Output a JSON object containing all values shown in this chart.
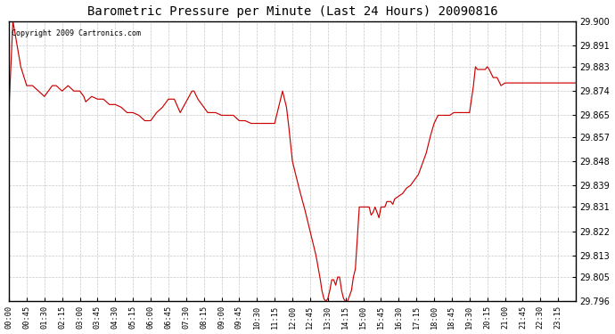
{
  "title": "Barometric Pressure per Minute (Last 24 Hours) 20090816",
  "copyright": "Copyright 2009 Cartronics.com",
  "line_color": "#cc0000",
  "bg_color": "#ffffff",
  "plot_bg_color": "#ffffff",
  "grid_color": "#c8c8c8",
  "ylim": [
    29.796,
    29.9
  ],
  "yticks": [
    29.796,
    29.805,
    29.813,
    29.822,
    29.831,
    29.839,
    29.848,
    29.857,
    29.865,
    29.874,
    29.883,
    29.891,
    29.9
  ],
  "xtick_labels": [
    "00:00",
    "00:45",
    "01:30",
    "02:15",
    "03:00",
    "03:45",
    "04:30",
    "05:15",
    "06:00",
    "06:45",
    "07:30",
    "08:15",
    "09:00",
    "09:45",
    "10:30",
    "11:15",
    "12:00",
    "12:45",
    "13:30",
    "14:15",
    "15:00",
    "15:45",
    "16:30",
    "17:15",
    "18:00",
    "18:45",
    "19:30",
    "20:15",
    "21:00",
    "21:45",
    "22:30",
    "23:15"
  ],
  "keypoints_minutes": [
    [
      0,
      29.867
    ],
    [
      10,
      29.9
    ],
    [
      30,
      29.883
    ],
    [
      45,
      29.876
    ],
    [
      60,
      29.876
    ],
    [
      75,
      29.874
    ],
    [
      90,
      29.872
    ],
    [
      100,
      29.874
    ],
    [
      110,
      29.876
    ],
    [
      120,
      29.876
    ],
    [
      135,
      29.874
    ],
    [
      150,
      29.876
    ],
    [
      165,
      29.874
    ],
    [
      180,
      29.874
    ],
    [
      190,
      29.872
    ],
    [
      195,
      29.87
    ],
    [
      210,
      29.872
    ],
    [
      225,
      29.871
    ],
    [
      240,
      29.871
    ],
    [
      255,
      29.869
    ],
    [
      270,
      29.869
    ],
    [
      285,
      29.868
    ],
    [
      300,
      29.866
    ],
    [
      315,
      29.866
    ],
    [
      330,
      29.865
    ],
    [
      345,
      29.863
    ],
    [
      360,
      29.863
    ],
    [
      375,
      29.866
    ],
    [
      390,
      29.868
    ],
    [
      405,
      29.871
    ],
    [
      420,
      29.871
    ],
    [
      435,
      29.866
    ],
    [
      450,
      29.87
    ],
    [
      465,
      29.874
    ],
    [
      470,
      29.874
    ],
    [
      480,
      29.871
    ],
    [
      495,
      29.868
    ],
    [
      505,
      29.866
    ],
    [
      510,
      29.866
    ],
    [
      525,
      29.866
    ],
    [
      540,
      29.865
    ],
    [
      555,
      29.865
    ],
    [
      570,
      29.865
    ],
    [
      585,
      29.863
    ],
    [
      600,
      29.863
    ],
    [
      615,
      29.862
    ],
    [
      630,
      29.862
    ],
    [
      645,
      29.862
    ],
    [
      660,
      29.862
    ],
    [
      675,
      29.862
    ],
    [
      690,
      29.871
    ],
    [
      695,
      29.874
    ],
    [
      700,
      29.871
    ],
    [
      705,
      29.868
    ],
    [
      710,
      29.862
    ],
    [
      720,
      29.848
    ],
    [
      735,
      29.839
    ],
    [
      750,
      29.831
    ],
    [
      765,
      29.822
    ],
    [
      780,
      29.813
    ],
    [
      790,
      29.805
    ],
    [
      795,
      29.8
    ],
    [
      800,
      29.797
    ],
    [
      805,
      29.796
    ],
    [
      810,
      29.797
    ],
    [
      815,
      29.8
    ],
    [
      820,
      29.804
    ],
    [
      825,
      29.804
    ],
    [
      830,
      29.802
    ],
    [
      835,
      29.805
    ],
    [
      840,
      29.805
    ],
    [
      845,
      29.8
    ],
    [
      850,
      29.797
    ],
    [
      855,
      29.796
    ],
    [
      860,
      29.796
    ],
    [
      870,
      29.8
    ],
    [
      875,
      29.805
    ],
    [
      880,
      29.808
    ],
    [
      890,
      29.831
    ],
    [
      900,
      29.831
    ],
    [
      910,
      29.831
    ],
    [
      915,
      29.831
    ],
    [
      920,
      29.828
    ],
    [
      925,
      29.829
    ],
    [
      930,
      29.831
    ],
    [
      935,
      29.829
    ],
    [
      940,
      29.827
    ],
    [
      945,
      29.831
    ],
    [
      955,
      29.831
    ],
    [
      960,
      29.833
    ],
    [
      970,
      29.833
    ],
    [
      975,
      29.832
    ],
    [
      980,
      29.834
    ],
    [
      990,
      29.835
    ],
    [
      1000,
      29.836
    ],
    [
      1010,
      29.838
    ],
    [
      1020,
      29.839
    ],
    [
      1030,
      29.841
    ],
    [
      1040,
      29.843
    ],
    [
      1050,
      29.847
    ],
    [
      1060,
      29.851
    ],
    [
      1070,
      29.857
    ],
    [
      1080,
      29.862
    ],
    [
      1090,
      29.865
    ],
    [
      1100,
      29.865
    ],
    [
      1110,
      29.865
    ],
    [
      1120,
      29.865
    ],
    [
      1130,
      29.866
    ],
    [
      1140,
      29.866
    ],
    [
      1150,
      29.866
    ],
    [
      1160,
      29.866
    ],
    [
      1170,
      29.866
    ],
    [
      1180,
      29.876
    ],
    [
      1185,
      29.883
    ],
    [
      1190,
      29.882
    ],
    [
      1200,
      29.882
    ],
    [
      1210,
      29.882
    ],
    [
      1215,
      29.883
    ],
    [
      1220,
      29.882
    ],
    [
      1230,
      29.879
    ],
    [
      1240,
      29.879
    ],
    [
      1250,
      29.876
    ],
    [
      1260,
      29.877
    ],
    [
      1270,
      29.877
    ],
    [
      1280,
      29.877
    ],
    [
      1290,
      29.877
    ],
    [
      1300,
      29.877
    ],
    [
      1310,
      29.877
    ],
    [
      1320,
      29.877
    ],
    [
      1330,
      29.877
    ],
    [
      1340,
      29.877
    ],
    [
      1350,
      29.877
    ],
    [
      1360,
      29.877
    ],
    [
      1370,
      29.877
    ],
    [
      1380,
      29.877
    ],
    [
      1390,
      29.877
    ],
    [
      1400,
      29.877
    ],
    [
      1410,
      29.877
    ],
    [
      1420,
      29.877
    ],
    [
      1425,
      29.877
    ],
    [
      1439,
      29.877
    ]
  ]
}
